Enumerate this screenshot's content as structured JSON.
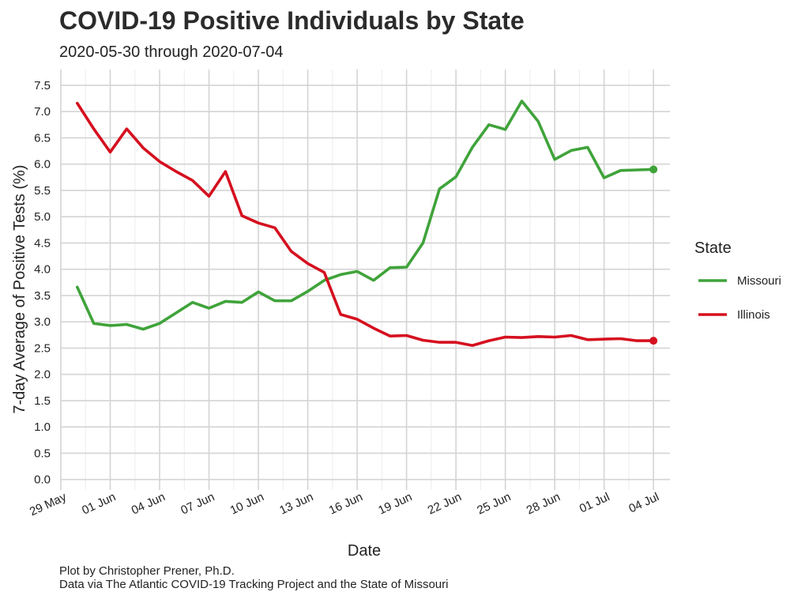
{
  "title": "COVID-19 Positive Individuals by State",
  "subtitle": "2020-05-30 through 2020-07-04",
  "caption_lines": [
    "Plot by Christopher Prener, Ph.D.",
    "Data via The Atlantic COVID-19 Tracking Project and the State of Missouri"
  ],
  "chart_data": {
    "type": "line",
    "xlabel": "Date",
    "ylabel": "7-day Average of Positive Tests (%)",
    "x": [
      "2020-05-30",
      "2020-05-31",
      "2020-06-01",
      "2020-06-02",
      "2020-06-03",
      "2020-06-04",
      "2020-06-05",
      "2020-06-06",
      "2020-06-07",
      "2020-06-08",
      "2020-06-09",
      "2020-06-10",
      "2020-06-11",
      "2020-06-12",
      "2020-06-13",
      "2020-06-14",
      "2020-06-15",
      "2020-06-16",
      "2020-06-17",
      "2020-06-18",
      "2020-06-19",
      "2020-06-20",
      "2020-06-21",
      "2020-06-22",
      "2020-06-23",
      "2020-06-24",
      "2020-06-25",
      "2020-06-26",
      "2020-06-27",
      "2020-06-28",
      "2020-06-29",
      "2020-06-30",
      "2020-07-01",
      "2020-07-02",
      "2020-07-03",
      "2020-07-04"
    ],
    "xlim": [
      "2020-05-29",
      "2020-07-05"
    ],
    "x_ticks": [
      "2020-05-29",
      "2020-06-01",
      "2020-06-04",
      "2020-06-07",
      "2020-06-10",
      "2020-06-13",
      "2020-06-16",
      "2020-06-19",
      "2020-06-22",
      "2020-06-25",
      "2020-06-28",
      "2020-07-01",
      "2020-07-04"
    ],
    "x_tick_labels": [
      "29 May",
      "01 Jun",
      "04 Jun",
      "07 Jun",
      "10 Jun",
      "13 Jun",
      "16 Jun",
      "19 Jun",
      "22 Jun",
      "25 Jun",
      "28 Jun",
      "01 Jul",
      "04 Jul"
    ],
    "ylim": [
      -0.2,
      7.8
    ],
    "y_ticks": [
      0.0,
      0.5,
      1.0,
      1.5,
      2.0,
      2.5,
      3.0,
      3.5,
      4.0,
      4.5,
      5.0,
      5.5,
      6.0,
      6.5,
      7.0,
      7.5
    ],
    "y_tick_labels": [
      "0.0",
      "0.5",
      "1.0",
      "1.5",
      "2.0",
      "2.5",
      "3.0",
      "3.5",
      "4.0",
      "4.5",
      "5.0",
      "5.5",
      "6.0",
      "6.5",
      "7.0",
      "7.5"
    ],
    "grid": true,
    "legend": {
      "title": "State",
      "position": "right"
    },
    "series": [
      {
        "name": "Missouri",
        "color": "#3fa33a",
        "values": [
          3.66,
          2.97,
          2.93,
          2.95,
          2.86,
          2.97,
          3.17,
          3.37,
          3.26,
          3.39,
          3.37,
          3.57,
          3.4,
          3.4,
          3.58,
          3.79,
          3.9,
          3.96,
          3.79,
          4.03,
          4.04,
          4.5,
          5.53,
          5.76,
          6.32,
          6.75,
          6.66,
          7.2,
          6.81,
          6.09,
          6.26,
          6.32,
          5.74,
          5.88,
          5.89,
          5.9
        ]
      },
      {
        "name": "Illinois",
        "color": "#d5101f",
        "values": [
          7.16,
          6.67,
          6.23,
          6.67,
          6.31,
          6.05,
          5.86,
          5.69,
          5.39,
          5.86,
          5.02,
          4.88,
          4.79,
          4.34,
          4.11,
          3.94,
          3.14,
          3.05,
          2.88,
          2.73,
          2.74,
          2.65,
          2.61,
          2.61,
          2.55,
          2.64,
          2.71,
          2.7,
          2.72,
          2.71,
          2.74,
          2.66,
          2.67,
          2.68,
          2.64,
          2.64
        ]
      }
    ]
  }
}
